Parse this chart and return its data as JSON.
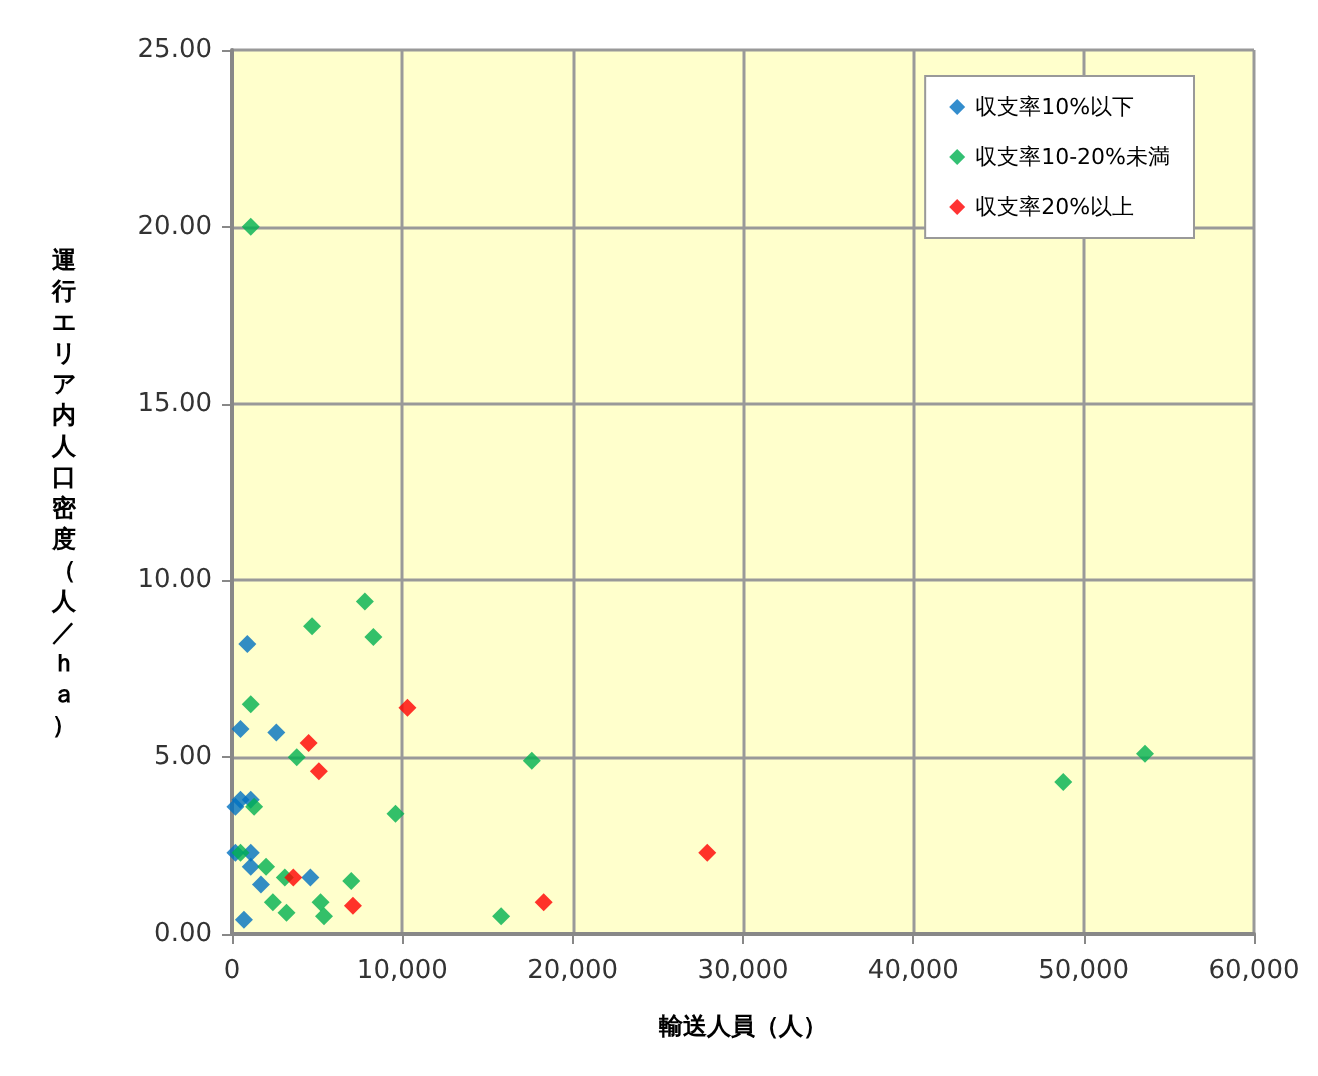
{
  "chart_data": {
    "type": "scatter",
    "xlabel": "輸送人員（人）",
    "ylabel": "運行エリア内人口密度（人／ｈａ）",
    "xlim": [
      0,
      60000
    ],
    "ylim": [
      0,
      25
    ],
    "xticks": [
      0,
      {
        "value": 10000,
        "label": "10,000"
      },
      {
        "value": 20000,
        "label": "20,000"
      },
      {
        "value": 30000,
        "label": "30,000"
      },
      {
        "value": 40000,
        "label": "40,000"
      },
      {
        "value": 50000,
        "label": "50,000"
      },
      {
        "value": 60000,
        "label": "60,000"
      }
    ],
    "yticks": [
      {
        "value": 0,
        "label": "0.00"
      },
      {
        "value": 5,
        "label": "5.00"
      },
      {
        "value": 10,
        "label": "10.00"
      },
      {
        "value": 15,
        "label": "15.00"
      },
      {
        "value": 20,
        "label": "20.00"
      },
      {
        "value": 25,
        "label": "25.00"
      }
    ],
    "grid": true,
    "legend": "top right",
    "marker": "diamond",
    "series": [
      {
        "name": "収支率10%以下",
        "color": "#0070c0",
        "x": [
          900,
          500,
          2600,
          200,
          1100,
          500,
          200,
          1100,
          1100,
          1700,
          4600,
          700
        ],
        "values": [
          8.2,
          5.8,
          5.7,
          3.6,
          3.8,
          3.8,
          2.3,
          2.3,
          1.9,
          1.4,
          1.6,
          0.4
        ]
      },
      {
        "name": "収支率10-20%未満",
        "color": "#00b050",
        "x": [
          1100,
          7800,
          4700,
          8300,
          1100,
          3800,
          17600,
          9600,
          1300,
          500,
          2000,
          3100,
          7000,
          2400,
          5200,
          3200,
          5400,
          15800,
          48800,
          53600
        ],
        "values": [
          20.0,
          9.4,
          8.7,
          8.4,
          6.5,
          5.0,
          4.9,
          3.4,
          3.6,
          2.3,
          1.9,
          1.6,
          1.5,
          0.9,
          0.9,
          0.6,
          0.5,
          0.5,
          4.3,
          5.1
        ]
      },
      {
        "name": "収支率20%以上",
        "color": "#ff0000",
        "x": [
          10300,
          4500,
          5100,
          3600,
          7100,
          18300,
          27900
        ],
        "values": [
          6.4,
          5.4,
          4.6,
          1.6,
          0.8,
          0.9,
          2.3
        ]
      }
    ]
  }
}
